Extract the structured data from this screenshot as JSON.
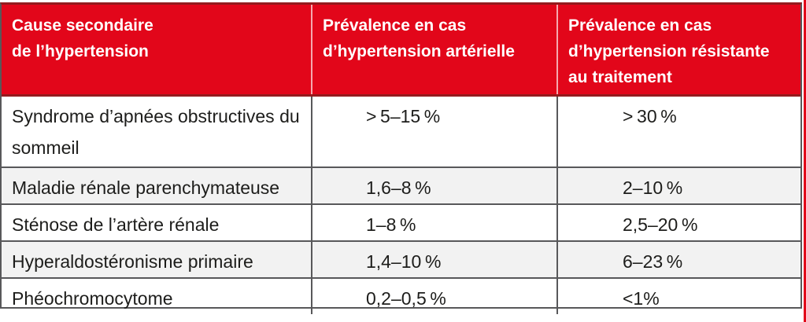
{
  "colors": {
    "header_red": "#e2061a",
    "dark_red": "#951b1e",
    "border_gray": "#58585a",
    "alt_row_bg": "#f2f2f2",
    "text_color": "#1d1d1b"
  },
  "header": {
    "col1": {
      "lines": [
        "Cause secondaire",
        "de l’hypertension"
      ]
    },
    "col2": {
      "lines": [
        "Prévalence en cas",
        "d’hypertension artérielle"
      ]
    },
    "col3": {
      "lines": [
        "Prévalence en cas",
        "d’hypertension résistante",
        "au traitement"
      ]
    }
  },
  "rows": [
    {
      "cause": "Syndrome d’apnées obstructives du sommeil",
      "prev_arterielle": "> 5–15 %",
      "prev_resistante": "> 30 %"
    },
    {
      "cause": "Maladie rénale parenchymateuse",
      "prev_arterielle": "1,6–8 %",
      "prev_resistante": "2–10 %"
    },
    {
      "cause": "Sténose de l’artère rénale",
      "prev_arterielle": "1–8 %",
      "prev_resistante": "2,5–20 %"
    },
    {
      "cause": "Hyperaldostéronisme primaire",
      "prev_arterielle": "1,4–10 %",
      "prev_resistante": "6–23 %"
    },
    {
      "cause": "Phéochromocytome",
      "prev_arterielle": "0,2–0,5 %",
      "prev_resistante": "<1%"
    }
  ]
}
